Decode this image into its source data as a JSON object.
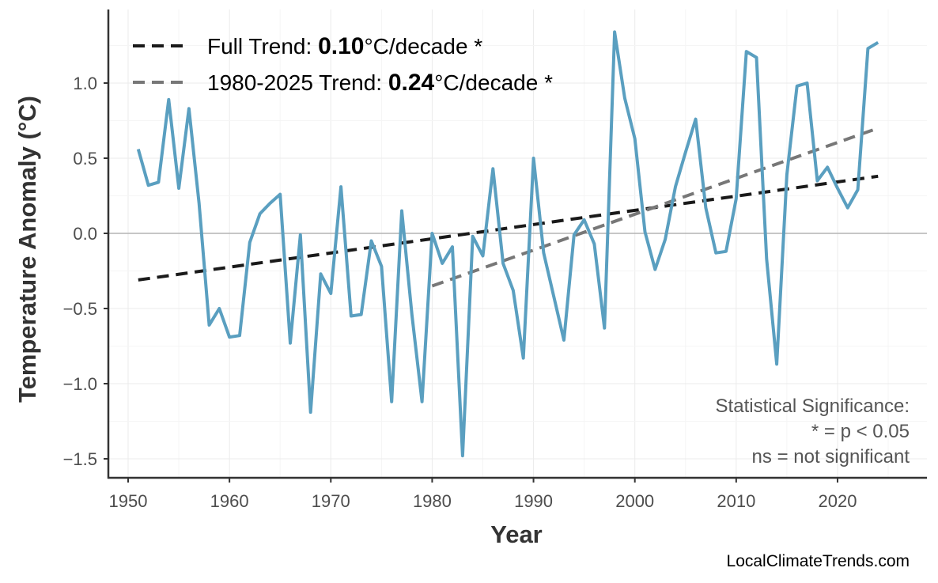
{
  "chart_data": {
    "type": "line",
    "xlabel": "Year",
    "ylabel": "Temperature Anomaly (°C)",
    "xlim": [
      1947,
      2029
    ],
    "ylim": [
      -1.6,
      1.4
    ],
    "xticks": [
      1950,
      1960,
      1970,
      1980,
      1990,
      2000,
      2010,
      2020
    ],
    "yticks": [
      -1.5,
      -1.0,
      -0.5,
      0.0,
      0.5,
      1.0
    ],
    "ytick_labels": [
      "−1.5",
      "−1.0",
      "−0.5",
      "0.0",
      "0.5",
      "1.0"
    ],
    "grid": true,
    "legend_position": "top-left",
    "series": [
      {
        "color": "#5a9fc0",
        "x": [
          1951,
          1952,
          1953,
          1954,
          1955,
          1956,
          1957,
          1958,
          1959,
          1960,
          1961,
          1962,
          1963,
          1964,
          1965,
          1966,
          1967,
          1968,
          1969,
          1970,
          1971,
          1972,
          1973,
          1974,
          1975,
          1976,
          1977,
          1978,
          1979,
          1980,
          1981,
          1982,
          1983,
          1984,
          1985,
          1986,
          1987,
          1988,
          1989,
          1990,
          1991,
          1992,
          1993,
          1994,
          1995,
          1996,
          1997,
          1998,
          1999,
          2000,
          2001,
          2002,
          2003,
          2004,
          2005,
          2006,
          2007,
          2008,
          2009,
          2010,
          2011,
          2012,
          2013,
          2014,
          2015,
          2016,
          2017,
          2018,
          2019,
          2020,
          2021,
          2022,
          2023,
          2024
        ],
        "y": [
          0.56,
          0.32,
          0.34,
          0.89,
          0.3,
          0.83,
          0.2,
          -0.61,
          -0.5,
          -0.69,
          -0.68,
          -0.06,
          0.13,
          0.2,
          0.26,
          -0.73,
          -0.01,
          -1.19,
          -0.27,
          -0.4,
          0.31,
          -0.55,
          -0.54,
          -0.05,
          -0.22,
          -1.12,
          0.15,
          -0.54,
          -1.12,
          0.0,
          -0.2,
          -0.09,
          -1.48,
          -0.02,
          -0.15,
          0.43,
          -0.2,
          -0.38,
          -0.83,
          0.5,
          -0.13,
          -0.42,
          -0.71,
          -0.01,
          0.09,
          -0.07,
          -0.63,
          1.34,
          0.9,
          0.63,
          0.01,
          -0.24,
          -0.04,
          0.31,
          0.54,
          0.76,
          0.17,
          -0.13,
          -0.12,
          0.23,
          1.21,
          1.17,
          -0.17,
          -0.87,
          0.39,
          0.98,
          1.0,
          0.35,
          0.44,
          0.3,
          0.17,
          0.29,
          1.23,
          1.27
        ]
      }
    ],
    "trends": [
      {
        "label_prefix": "Full Trend: ",
        "value": "0.10",
        "label_suffix": "°C/decade *",
        "color": "#1a1a1a",
        "x": [
          1951,
          2024
        ],
        "y": [
          -0.31,
          0.38
        ]
      },
      {
        "label_prefix": "1980-2025 Trend: ",
        "value": "0.24",
        "label_suffix": "°C/decade *",
        "color": "#777777",
        "x": [
          1980,
          2024
        ],
        "y": [
          -0.35,
          0.7
        ]
      }
    ],
    "annotation": [
      "Statistical Significance:",
      "* = p < 0.05",
      "ns = not significant"
    ]
  },
  "credit": "LocalClimateTrends.com"
}
